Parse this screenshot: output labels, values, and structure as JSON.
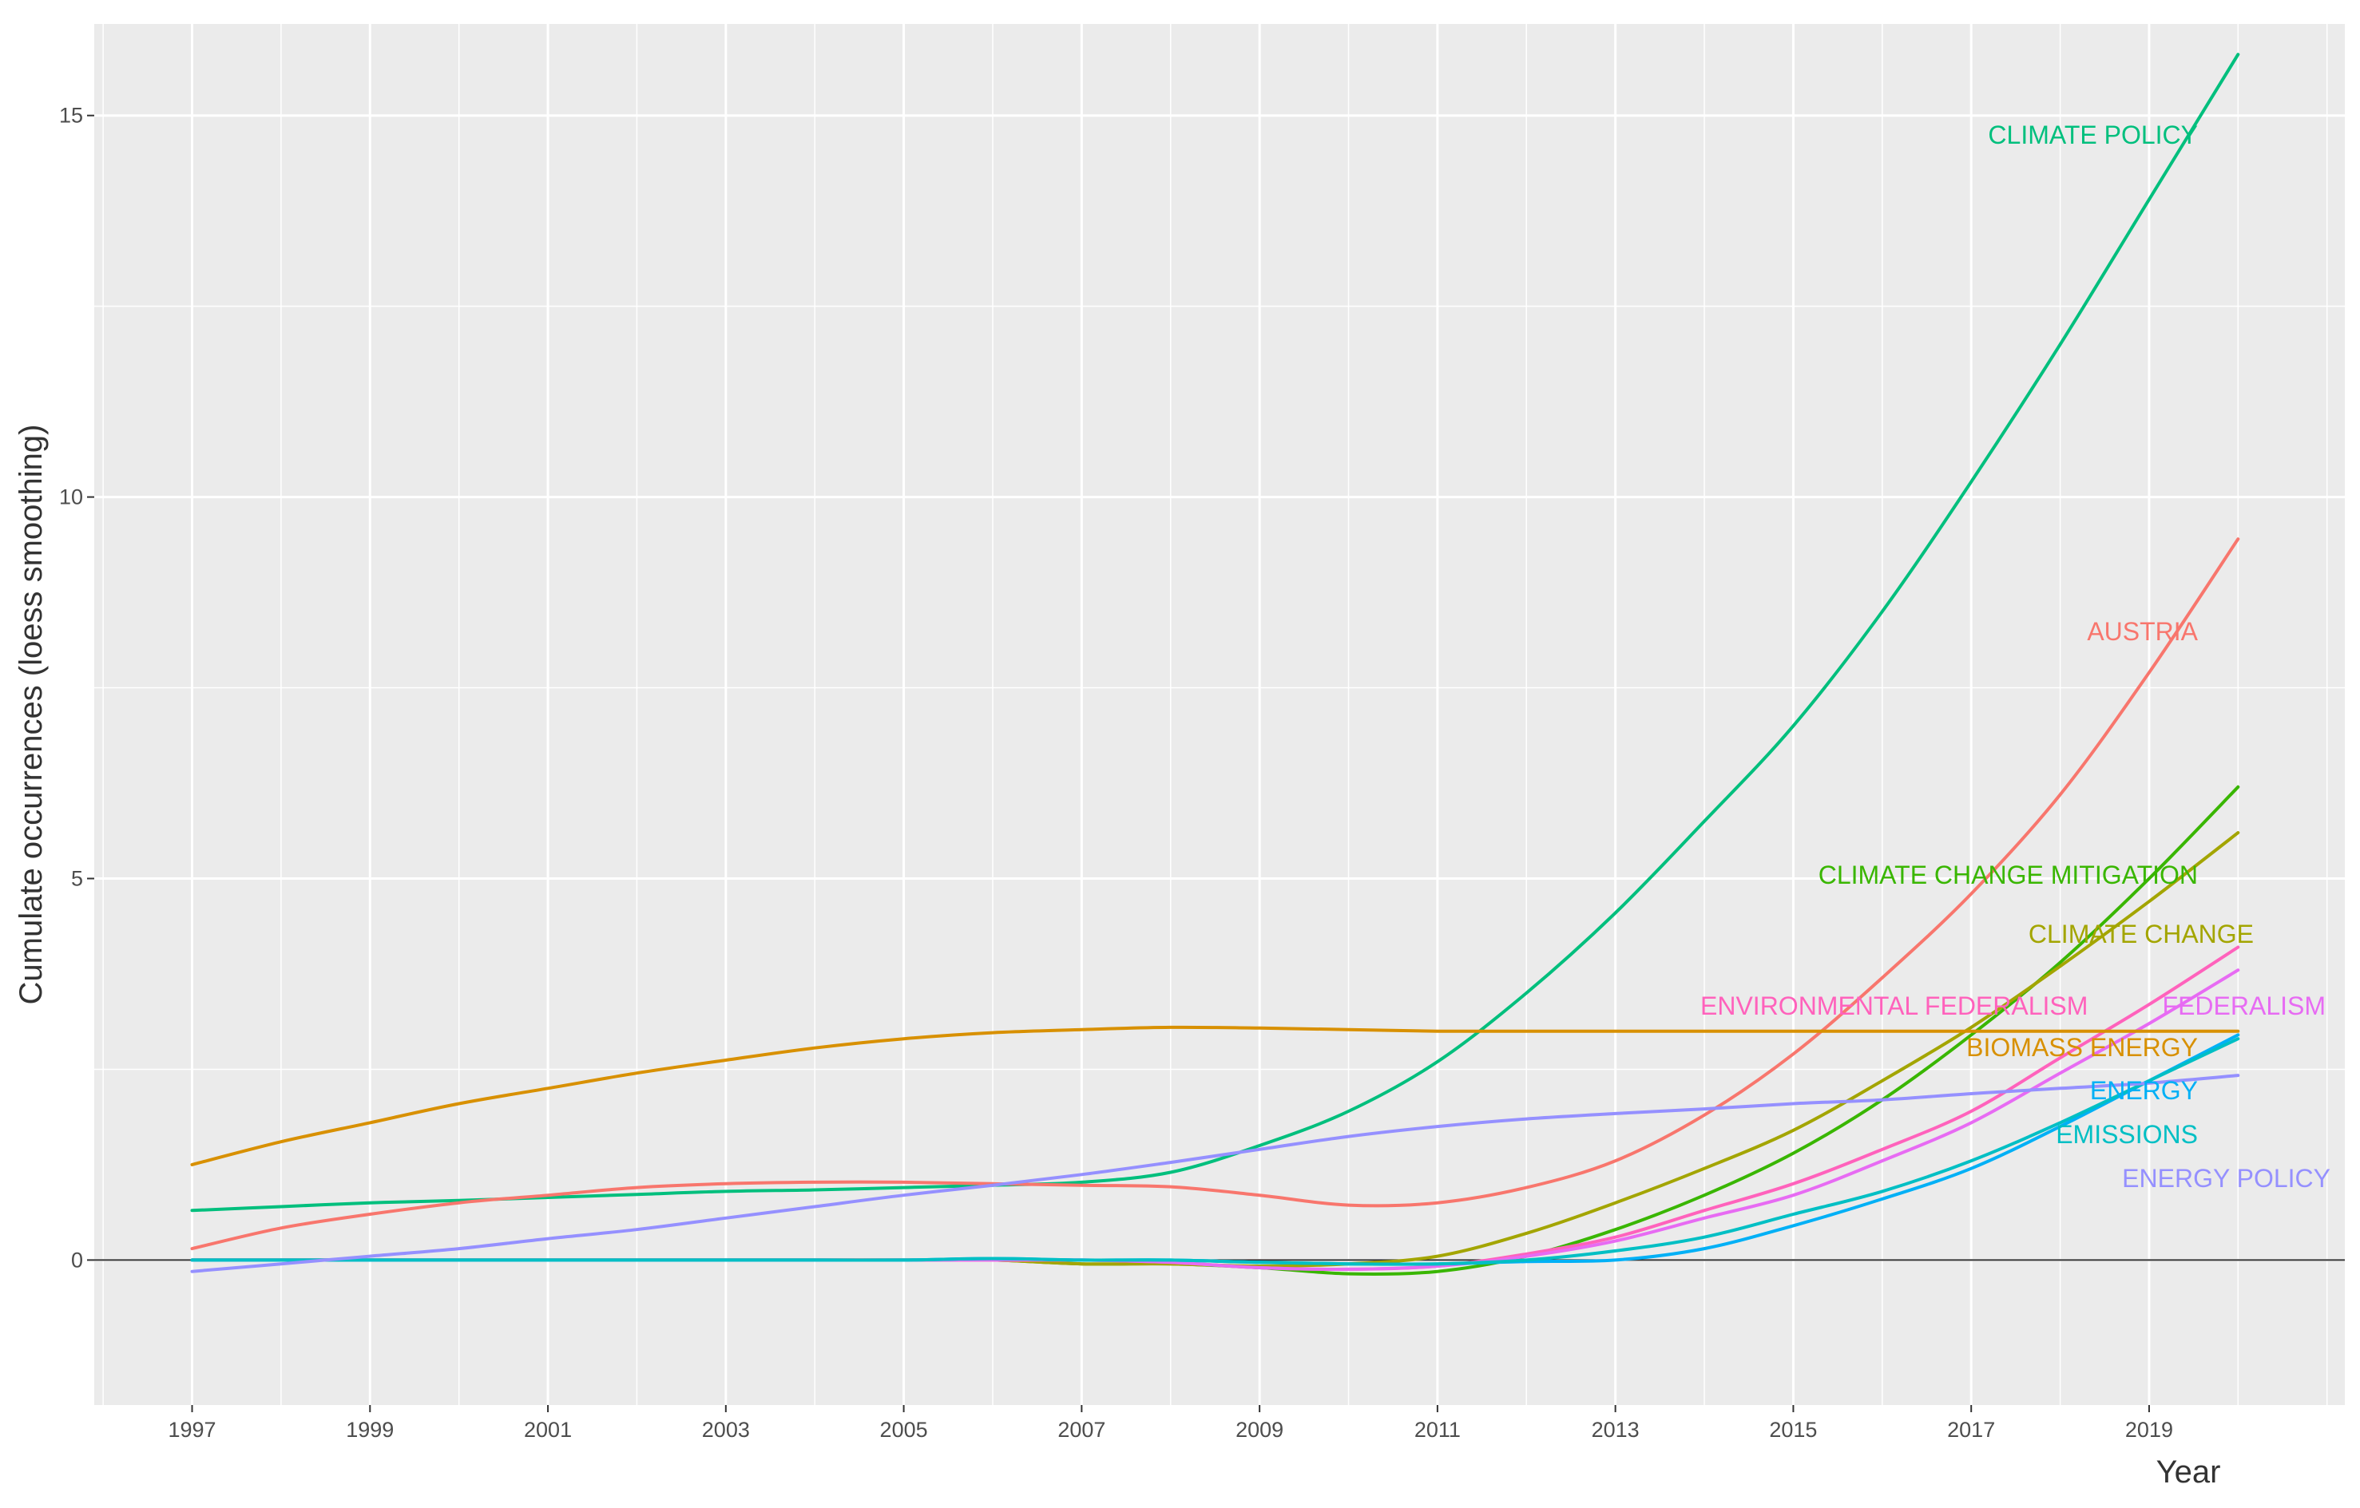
{
  "chart_data": {
    "type": "line",
    "title": "",
    "xlabel": "Year",
    "ylabel": "Cumulate occurrences (loess smoothing)",
    "xlim": [
      1995.9,
      2021.2
    ],
    "ylim": [
      -1.9,
      16.2
    ],
    "x_ticks": [
      "1997",
      "1999",
      "2001",
      "2003",
      "2005",
      "2007",
      "2009",
      "2011",
      "2013",
      "2015",
      "2017",
      "2019"
    ],
    "x_tick_values": [
      1997,
      1999,
      2001,
      2003,
      2005,
      2007,
      2009,
      2011,
      2013,
      2015,
      2017,
      2019
    ],
    "y_ticks": [
      "0",
      "5",
      "10",
      "15"
    ],
    "y_tick_values": [
      0,
      5,
      10,
      15
    ],
    "grid": true,
    "reference_line_y": 0,
    "x": [
      1997,
      1998,
      1999,
      2000,
      2001,
      2002,
      2003,
      2004,
      2005,
      2006,
      2007,
      2008,
      2009,
      2010,
      2011,
      2012,
      2013,
      2014,
      2015,
      2016,
      2017,
      2018,
      2019,
      2020
    ],
    "series": [
      {
        "name": "CLIMATE POLICY",
        "label": "CLIMATE POLICY",
        "color": "#00BF7D",
        "values": [
          0.65,
          0.7,
          0.75,
          0.78,
          0.82,
          0.86,
          0.9,
          0.92,
          0.95,
          0.98,
          1.02,
          1.15,
          1.5,
          1.95,
          2.6,
          3.5,
          4.55,
          5.75,
          7.0,
          8.5,
          10.2,
          12.0,
          13.9,
          15.8
        ]
      },
      {
        "name": "AUSTRIA",
        "label": "AUSTRIA",
        "color": "#F8766D",
        "values": [
          0.15,
          0.42,
          0.6,
          0.75,
          0.85,
          0.95,
          1.0,
          1.02,
          1.02,
          1.0,
          0.98,
          0.96,
          0.85,
          0.72,
          0.75,
          0.95,
          1.3,
          1.9,
          2.7,
          3.7,
          4.8,
          6.1,
          7.7,
          9.45
        ]
      },
      {
        "name": "CLIMATE CHANGE MITIGATION",
        "label": "CLIMATE CHANGE MITIGATION",
        "color": "#39B600",
        "values": [
          0,
          0,
          0,
          0,
          0,
          0,
          0,
          0,
          0,
          0,
          -0.05,
          -0.05,
          -0.1,
          -0.18,
          -0.15,
          0.05,
          0.4,
          0.85,
          1.4,
          2.1,
          2.95,
          3.9,
          5.0,
          6.2
        ]
      },
      {
        "name": "CLIMATE CHANGE",
        "label": "CLIMATE CHANGE",
        "color": "#A3A500",
        "values": [
          0,
          0,
          0,
          0,
          0,
          0,
          0,
          0,
          0,
          0,
          -0.05,
          -0.05,
          -0.08,
          -0.05,
          0.05,
          0.35,
          0.75,
          1.2,
          1.7,
          2.35,
          3.05,
          3.85,
          4.7,
          5.6
        ]
      },
      {
        "name": "ENVIRONMENTAL FEDERALISM",
        "label": "ENVIRONMENTAL FEDERALISM",
        "color": "#FF62BC",
        "values": [
          0,
          0,
          0,
          0,
          0,
          0,
          0,
          0,
          0,
          0,
          0,
          -0.03,
          -0.1,
          -0.12,
          -0.08,
          0.08,
          0.3,
          0.65,
          1.0,
          1.45,
          1.95,
          2.65,
          3.35,
          4.1
        ]
      },
      {
        "name": "FEDERALISM",
        "label": "FEDERALISM",
        "color": "#E76BF3",
        "values": [
          0,
          0,
          0,
          0,
          0,
          0,
          0,
          0,
          0,
          0,
          0,
          -0.03,
          -0.1,
          -0.12,
          -0.08,
          0.05,
          0.25,
          0.55,
          0.85,
          1.3,
          1.8,
          2.45,
          3.1,
          3.8
        ]
      },
      {
        "name": "BIOMASS ENERGY",
        "label": "BIOMASS ENERGY",
        "color": "#D89000",
        "values": [
          1.25,
          1.55,
          1.8,
          2.05,
          2.25,
          2.45,
          2.62,
          2.78,
          2.9,
          2.98,
          3.02,
          3.05,
          3.04,
          3.02,
          3.0,
          3.0,
          3.0,
          3.0,
          3.0,
          3.0,
          3.0,
          3.0,
          3.0,
          3.0
        ]
      },
      {
        "name": "ENERGY",
        "label": "ENERGY",
        "color": "#00B0F6",
        "values": [
          0,
          0,
          0,
          0,
          0,
          0,
          0,
          0,
          0,
          0.02,
          0,
          0,
          -0.03,
          -0.05,
          -0.05,
          -0.02,
          0,
          0.15,
          0.45,
          0.8,
          1.2,
          1.75,
          2.35,
          2.95
        ]
      },
      {
        "name": "EMISSIONS",
        "label": "EMISSIONS",
        "color": "#00BFC4",
        "values": [
          0,
          0,
          0,
          0,
          0,
          0,
          0,
          0,
          0,
          0.02,
          0,
          0,
          -0.03,
          -0.05,
          -0.05,
          0,
          0.12,
          0.3,
          0.6,
          0.9,
          1.3,
          1.8,
          2.35,
          2.9
        ]
      },
      {
        "name": "ENERGY POLICY",
        "label": "ENERGY POLICY",
        "color": "#9590FF",
        "values": [
          -0.15,
          -0.05,
          0.05,
          0.15,
          0.28,
          0.4,
          0.55,
          0.7,
          0.85,
          0.98,
          1.12,
          1.28,
          1.45,
          1.62,
          1.75,
          1.85,
          1.92,
          1.98,
          2.05,
          2.1,
          2.18,
          2.25,
          2.32,
          2.42
        ]
      }
    ]
  }
}
